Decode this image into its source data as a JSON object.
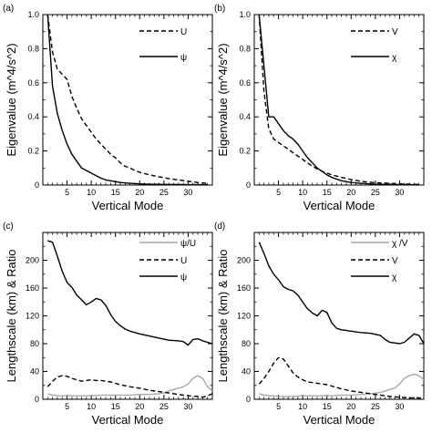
{
  "chart_data": [
    {
      "type": "line",
      "panel_label": "(a)",
      "xlabel": "Vertical Mode",
      "ylabel": "Eigenvalue (m^4/s^2)",
      "xlim": [
        0,
        35
      ],
      "ylim": [
        0,
        1.0
      ],
      "xticks": [
        5,
        10,
        15,
        20,
        25,
        30
      ],
      "yticks": [
        0,
        0.2,
        0.4,
        0.6,
        0.8,
        1.0
      ],
      "ytick_labels": [
        "0",
        "0.2",
        "0.4",
        "0.6",
        "0.8",
        "1.0"
      ],
      "legend_position": "top-right",
      "series": [
        {
          "name": "U",
          "style": "dashed",
          "color": "#000000",
          "x": [
            1,
            2,
            3,
            4,
            5,
            6,
            7,
            8,
            9,
            10,
            11,
            12,
            13,
            14,
            15,
            16,
            17,
            18,
            19,
            20,
            22,
            24,
            26,
            28,
            30,
            32,
            34
          ],
          "y": [
            1.0,
            0.78,
            0.68,
            0.65,
            0.62,
            0.52,
            0.45,
            0.39,
            0.35,
            0.31,
            0.27,
            0.24,
            0.21,
            0.18,
            0.16,
            0.13,
            0.11,
            0.1,
            0.085,
            0.075,
            0.06,
            0.048,
            0.038,
            0.03,
            0.022,
            0.015,
            0.01
          ]
        },
        {
          "name": "ψ",
          "style": "solid",
          "color": "#000000",
          "x": [
            1,
            2,
            3,
            4,
            5,
            6,
            7,
            8,
            9,
            10,
            11,
            12,
            13,
            14,
            15,
            16,
            18,
            20,
            22,
            25,
            28,
            31,
            34
          ],
          "y": [
            1.0,
            0.58,
            0.42,
            0.32,
            0.24,
            0.18,
            0.14,
            0.1,
            0.085,
            0.07,
            0.055,
            0.04,
            0.03,
            0.025,
            0.02,
            0.015,
            0.01,
            0.007,
            0.005,
            0.004,
            0.003,
            0.002,
            0.002
          ]
        }
      ]
    },
    {
      "type": "line",
      "panel_label": "(b)",
      "xlabel": "Vertical Mode",
      "ylabel": "Eigenvalue (m^4/s^2)",
      "xlim": [
        0,
        35
      ],
      "ylim": [
        0,
        1.0
      ],
      "xticks": [
        5,
        10,
        15,
        20,
        25,
        30
      ],
      "yticks": [
        0,
        0.2,
        0.4,
        0.6,
        0.8,
        1.0
      ],
      "ytick_labels": [
        "0",
        "0.2",
        "0.4",
        "0.6",
        "0.8",
        "1.0"
      ],
      "legend_position": "top-right",
      "series": [
        {
          "name": "V",
          "style": "dashed",
          "color": "#000000",
          "x": [
            1,
            2,
            3,
            4,
            5,
            6,
            7,
            8,
            9,
            10,
            11,
            12,
            13,
            14,
            15,
            16,
            18,
            20,
            22,
            25,
            28,
            31,
            34
          ],
          "y": [
            1.0,
            0.55,
            0.33,
            0.27,
            0.25,
            0.23,
            0.21,
            0.19,
            0.17,
            0.15,
            0.13,
            0.11,
            0.095,
            0.08,
            0.07,
            0.06,
            0.045,
            0.032,
            0.022,
            0.014,
            0.01,
            0.006,
            0.004
          ]
        },
        {
          "name": "χ",
          "style": "solid",
          "color": "#000000",
          "x": [
            1,
            2,
            3,
            4,
            5,
            6,
            7,
            8,
            9,
            10,
            11,
            12,
            13,
            14,
            15,
            16,
            18,
            20,
            22,
            25,
            28,
            31,
            34
          ],
          "y": [
            1.0,
            0.7,
            0.4,
            0.4,
            0.36,
            0.32,
            0.29,
            0.27,
            0.24,
            0.2,
            0.16,
            0.13,
            0.1,
            0.08,
            0.06,
            0.045,
            0.025,
            0.015,
            0.01,
            0.005,
            0.003,
            0.002,
            0.001
          ]
        }
      ]
    },
    {
      "type": "line",
      "panel_label": "(c)",
      "xlabel": "Vertical Mode",
      "ylabel": "Lengthscale (km) & Ratio",
      "xlim": [
        0,
        35
      ],
      "ylim": [
        0,
        240
      ],
      "xticks": [
        5,
        10,
        15,
        20,
        25,
        30
      ],
      "yticks": [
        0,
        40,
        80,
        120,
        160,
        200
      ],
      "ytick_labels": [
        "0",
        "40",
        "80",
        "120",
        "160",
        "200"
      ],
      "legend_position": "top-right",
      "series": [
        {
          "name": "ψ/U",
          "style": "solid",
          "color": "#a8a8a8",
          "x": [
            1,
            2,
            3,
            4,
            5,
            6,
            8,
            10,
            12,
            14,
            16,
            18,
            20,
            22,
            24,
            25,
            26,
            27,
            28,
            29,
            30,
            31,
            32,
            33,
            34,
            35
          ],
          "y": [
            8,
            6,
            5,
            5,
            5,
            5,
            5,
            5,
            6,
            6,
            6,
            6,
            7,
            7,
            8,
            9,
            12,
            14,
            16,
            18,
            22,
            30,
            34,
            30,
            18,
            12
          ]
        },
        {
          "name": "U",
          "style": "dashed",
          "color": "#000000",
          "x": [
            1,
            2,
            3,
            4,
            5,
            6,
            7,
            8,
            9,
            10,
            11,
            12,
            13,
            14,
            15,
            16,
            18,
            20,
            22,
            24,
            26,
            28,
            30,
            32,
            33,
            34,
            35
          ],
          "y": [
            18,
            26,
            32,
            34,
            33,
            30,
            28,
            26,
            27,
            28,
            27,
            27,
            26,
            25,
            23,
            21,
            18,
            16,
            13,
            11,
            9,
            7,
            5,
            4,
            3,
            5,
            8
          ]
        },
        {
          "name": "ψ",
          "style": "solid",
          "color": "#000000",
          "x": [
            1,
            2,
            3,
            4,
            5,
            6,
            7,
            8,
            9,
            10,
            11,
            12,
            13,
            14,
            15,
            16,
            17,
            18,
            19,
            20,
            22,
            24,
            26,
            28,
            29,
            30,
            31,
            32,
            33,
            34,
            35
          ],
          "y": [
            228,
            226,
            206,
            184,
            168,
            161,
            150,
            143,
            136,
            140,
            145,
            143,
            135,
            122,
            112,
            106,
            101,
            98,
            96,
            94,
            91,
            88,
            85,
            84,
            83,
            78,
            86,
            87,
            84,
            82,
            80
          ]
        }
      ]
    },
    {
      "type": "line",
      "panel_label": "(d)",
      "xlabel": "Vertical Mode",
      "ylabel": "Lengthscale (km) & Ratio",
      "xlim": [
        0,
        35
      ],
      "ylim": [
        0,
        240
      ],
      "xticks": [
        5,
        10,
        15,
        20,
        25,
        30
      ],
      "yticks": [
        0,
        40,
        80,
        120,
        160,
        200
      ],
      "ytick_labels": [
        "0",
        "40",
        "80",
        "120",
        "160",
        "200"
      ],
      "legend_position": "top-right",
      "series": [
        {
          "name": "χ /V",
          "style": "solid",
          "color": "#a8a8a8",
          "x": [
            1,
            2,
            3,
            4,
            5,
            6,
            8,
            10,
            12,
            14,
            16,
            18,
            20,
            22,
            24,
            26,
            27,
            28,
            29,
            30,
            31,
            32,
            33,
            34,
            35
          ],
          "y": [
            8,
            6,
            5,
            5,
            4,
            4,
            4,
            5,
            5,
            5,
            5,
            6,
            6,
            7,
            8,
            10,
            12,
            14,
            16,
            22,
            30,
            34,
            36,
            34,
            28
          ]
        },
        {
          "name": "V",
          "style": "dashed",
          "color": "#000000",
          "x": [
            1,
            2,
            3,
            4,
            5,
            6,
            7,
            8,
            9,
            10,
            11,
            12,
            13,
            14,
            15,
            16,
            18,
            20,
            22,
            24,
            26,
            28,
            30,
            32,
            34,
            35
          ],
          "y": [
            22,
            30,
            40,
            52,
            60,
            58,
            48,
            38,
            32,
            28,
            25,
            24,
            23,
            22,
            21,
            19,
            15,
            12,
            10,
            8,
            6,
            4,
            3,
            2,
            2,
            1
          ]
        },
        {
          "name": "χ",
          "style": "solid",
          "color": "#000000",
          "x": [
            1,
            2,
            3,
            4,
            5,
            6,
            7,
            8,
            9,
            10,
            11,
            12,
            13,
            14,
            15,
            16,
            17,
            18,
            19,
            20,
            22,
            24,
            26,
            27,
            28,
            29,
            30,
            31,
            32,
            33,
            34,
            35
          ],
          "y": [
            226,
            210,
            192,
            180,
            172,
            162,
            158,
            156,
            150,
            140,
            130,
            124,
            120,
            128,
            125,
            110,
            102,
            100,
            99,
            98,
            96,
            95,
            92,
            86,
            82,
            81,
            80,
            82,
            88,
            94,
            92,
            80
          ]
        }
      ]
    }
  ]
}
